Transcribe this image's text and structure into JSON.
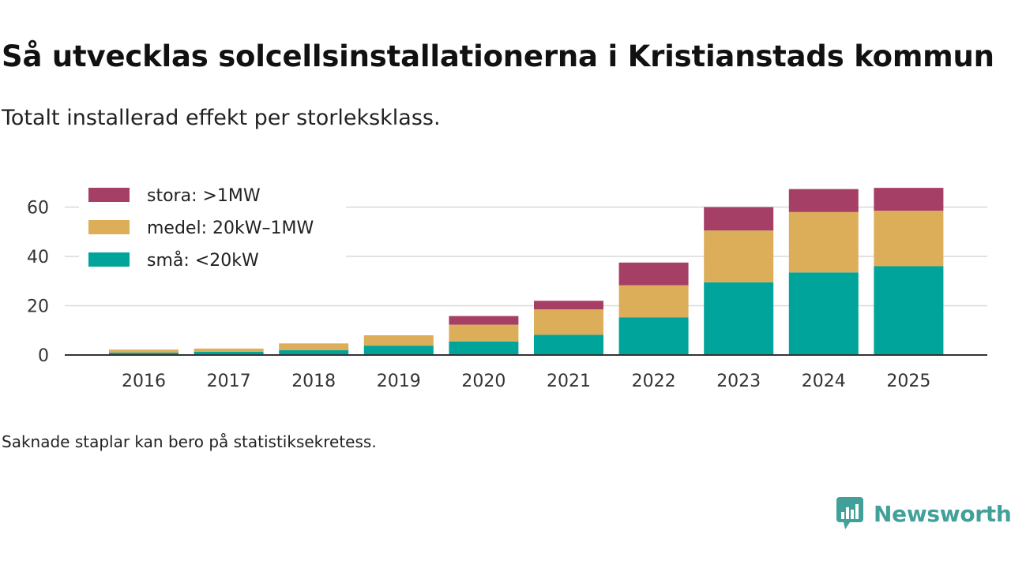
{
  "header": {
    "title": "Så utvecklas solcellsinstallationerna i Kristianstads kommun",
    "subtitle": "Totalt installerad effekt per storleksklass."
  },
  "footnote": "Saknade staplar kan bero på statistiksekretess.",
  "brand": {
    "name": "Newsworthy",
    "color": "#41a19a"
  },
  "chart_data": {
    "type": "bar",
    "stacked": true,
    "title": "Så utvecklas solcellsinstallationerna i Kristianstads kommun",
    "subtitle": "Totalt installerad effekt per storleksklass.",
    "xlabel": "",
    "ylabel": "",
    "categories": [
      "2016",
      "2017",
      "2018",
      "2019",
      "2020",
      "2021",
      "2022",
      "2023",
      "2024",
      "2025"
    ],
    "ylim": [
      0,
      70
    ],
    "yticks": [
      0,
      20,
      40,
      60
    ],
    "grid": true,
    "legend_position": "top-left",
    "series": [
      {
        "name": "små: <20kW",
        "color": "#00a49a",
        "values": [
          1.0,
          1.3,
          2.0,
          3.8,
          5.5,
          8.2,
          15.3,
          29.5,
          33.5,
          36.0
        ]
      },
      {
        "name": "medel: 20kW–1MW",
        "color": "#dcae5a",
        "values": [
          1.2,
          1.3,
          2.7,
          4.2,
          6.8,
          10.3,
          13.0,
          21.0,
          24.5,
          22.5
        ]
      },
      {
        "name": "stora: >1MW",
        "color": "#a53f65",
        "values": [
          0,
          0,
          0,
          0,
          3.5,
          3.5,
          9.2,
          9.5,
          9.3,
          9.3
        ]
      }
    ],
    "legend_order": [
      "stora: >1MW",
      "medel: 20kW–1MW",
      "små: <20kW"
    ]
  }
}
